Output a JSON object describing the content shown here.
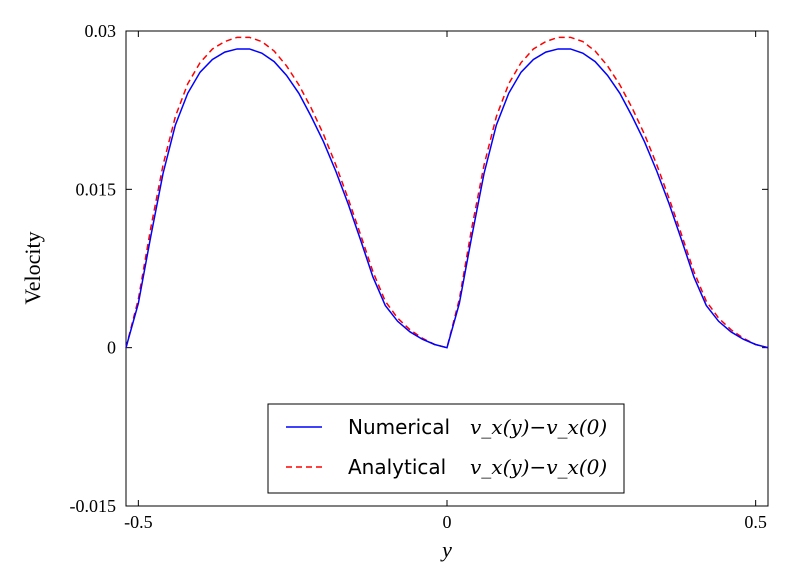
{
  "chart_data": {
    "type": "line",
    "xlabel": "y",
    "ylabel": "Velocity",
    "xlim": [
      -0.52,
      0.52
    ],
    "ylim": [
      -0.015,
      0.03
    ],
    "xticks": [
      -0.5,
      0,
      0.5
    ],
    "xtick_labels": [
      "-0.5",
      "0",
      "0.5"
    ],
    "yticks": [
      -0.015,
      0,
      0.015,
      0.03
    ],
    "ytick_labels": [
      "-0.015",
      "0",
      "0.015",
      "0.03"
    ],
    "grid": false,
    "legend_position": "lower-center",
    "series": [
      {
        "name": "Numerical",
        "name_math": "v_x(y)−v_x(0)",
        "color": "#0000ff",
        "style": "solid",
        "x": [
          -0.52,
          -0.5,
          -0.48,
          -0.46,
          -0.44,
          -0.42,
          -0.4,
          -0.38,
          -0.36,
          -0.34,
          -0.32,
          -0.3,
          -0.28,
          -0.26,
          -0.24,
          -0.22,
          -0.2,
          -0.18,
          -0.16,
          -0.14,
          -0.12,
          -0.1,
          -0.08,
          -0.06,
          -0.04,
          -0.02,
          0,
          0.02,
          0.04,
          0.06,
          0.08,
          0.1,
          0.12,
          0.14,
          0.16,
          0.18,
          0.2,
          0.22,
          0.24,
          0.26,
          0.28,
          0.3,
          0.32,
          0.34,
          0.36,
          0.38,
          0.4,
          0.42,
          0.44,
          0.46,
          0.48,
          0.5,
          0.52
        ],
        "y": [
          0,
          0.0042,
          0.0105,
          0.0165,
          0.0211,
          0.0241,
          0.0261,
          0.0273,
          0.028,
          0.0283,
          0.0283,
          0.0279,
          0.0271,
          0.0258,
          0.0241,
          0.0219,
          0.0195,
          0.0167,
          0.0136,
          0.0102,
          0.0067,
          0.004,
          0.0025,
          0.0015,
          0.0008,
          0.0003,
          0,
          0.0042,
          0.0105,
          0.0165,
          0.0211,
          0.0241,
          0.0261,
          0.0273,
          0.028,
          0.0283,
          0.0283,
          0.0279,
          0.0271,
          0.0258,
          0.0241,
          0.0219,
          0.0195,
          0.0167,
          0.0136,
          0.0102,
          0.0067,
          0.004,
          0.0025,
          0.0015,
          0.0008,
          0.0003,
          0
        ]
      },
      {
        "name": "Analytical",
        "name_math": "v_x(y)−v_x(0)",
        "color": "#ff0000",
        "style": "dashed",
        "x": [
          -0.52,
          -0.5,
          -0.48,
          -0.46,
          -0.44,
          -0.42,
          -0.4,
          -0.38,
          -0.36,
          -0.34,
          -0.32,
          -0.3,
          -0.28,
          -0.26,
          -0.24,
          -0.22,
          -0.2,
          -0.18,
          -0.16,
          -0.14,
          -0.12,
          -0.1,
          -0.08,
          -0.06,
          -0.04,
          -0.02,
          0,
          0.02,
          0.04,
          0.06,
          0.08,
          0.1,
          0.12,
          0.14,
          0.16,
          0.18,
          0.2,
          0.22,
          0.24,
          0.26,
          0.28,
          0.3,
          0.32,
          0.34,
          0.36,
          0.38,
          0.4,
          0.42,
          0.44,
          0.46,
          0.48,
          0.5,
          0.52
        ],
        "y": [
          0,
          0.0046,
          0.0113,
          0.0173,
          0.0219,
          0.025,
          0.027,
          0.0283,
          0.029,
          0.0294,
          0.0294,
          0.029,
          0.0281,
          0.0267,
          0.0249,
          0.0227,
          0.0202,
          0.0173,
          0.0141,
          0.0107,
          0.0072,
          0.0044,
          0.0028,
          0.0017,
          0.0009,
          0.0003,
          0,
          0.0046,
          0.0113,
          0.0173,
          0.0219,
          0.025,
          0.027,
          0.0283,
          0.029,
          0.0294,
          0.0294,
          0.029,
          0.0281,
          0.0267,
          0.0249,
          0.0227,
          0.0202,
          0.0173,
          0.0141,
          0.0107,
          0.0072,
          0.0044,
          0.0028,
          0.0017,
          0.0009,
          0.0003,
          0
        ]
      }
    ]
  }
}
